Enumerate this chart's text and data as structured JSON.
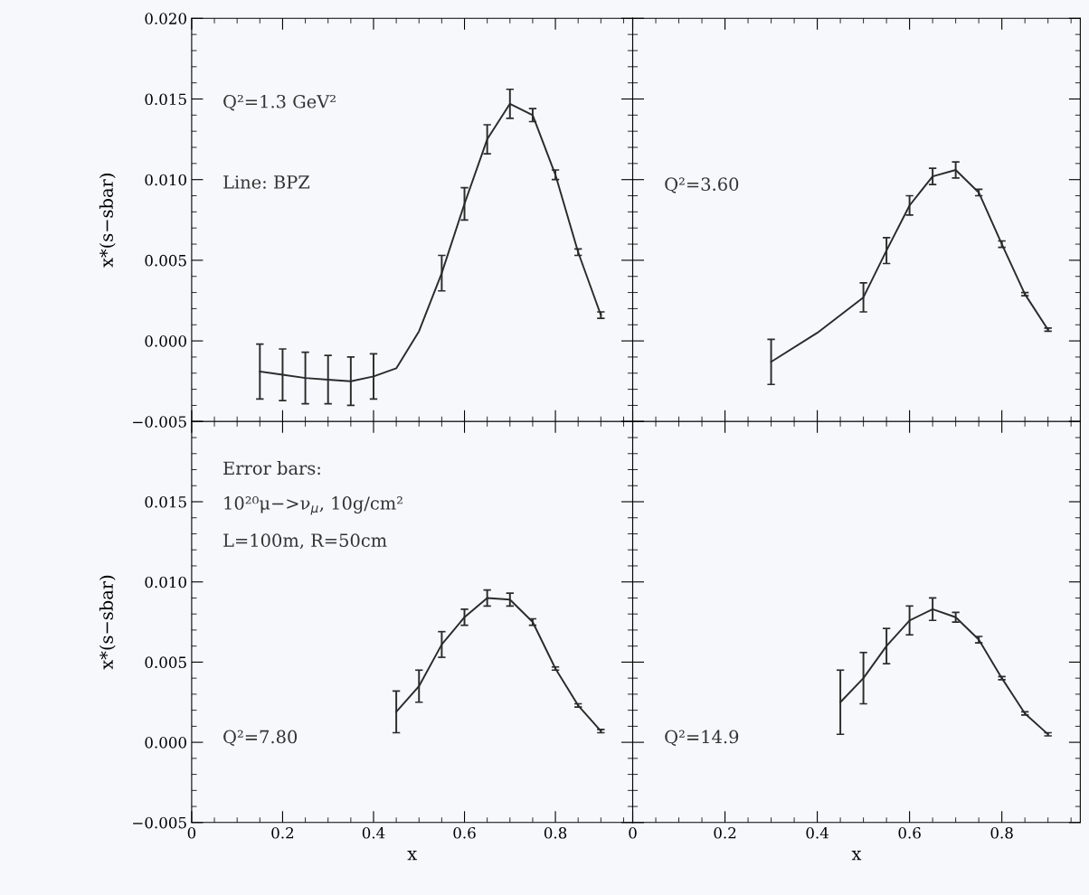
{
  "chart_data": [
    {
      "type": "line",
      "ylabel": "x*(s−sbar)",
      "tick_labels": "y",
      "xlim": [
        0,
        0.97
      ],
      "ylim": [
        -0.005,
        0.02
      ],
      "xticks": [
        0,
        0.2,
        0.4,
        0.6,
        0.8
      ],
      "yticks": [
        {
          "value": -0.005,
          "label": "−0.005"
        },
        {
          "value": 0,
          "label": "0.000"
        },
        {
          "value": 0.005,
          "label": "0.005"
        },
        {
          "value": 0.01,
          "label": "0.010"
        },
        {
          "value": 0.015,
          "label": "0.015"
        },
        {
          "value": 0.02,
          "label": "0.020"
        }
      ],
      "annotations": [
        "Q²=1.3 GeV²",
        "Line: BPZ"
      ],
      "marker": "none",
      "series": [
        {
          "color": "#2b2b2b",
          "x": [
            0.15,
            0.2,
            0.25,
            0.3,
            0.35,
            0.4,
            0.45,
            0.5,
            0.55,
            0.6,
            0.65,
            0.7,
            0.75,
            0.8,
            0.85,
            0.9
          ],
          "values": [
            -0.0019,
            -0.0021,
            -0.0023,
            -0.0024,
            -0.0025,
            -0.0022,
            -0.0017,
            0.0006,
            0.0042,
            0.0085,
            0.0125,
            0.0147,
            0.014,
            0.0103,
            0.0055,
            0.0016
          ],
          "errors": [
            0.0017,
            0.0016,
            0.0016,
            0.0015,
            0.0015,
            0.0014,
            null,
            null,
            0.0011,
            0.001,
            0.0009,
            0.0009,
            0.0004,
            0.0003,
            0.0002,
            0.0002
          ]
        }
      ]
    },
    {
      "type": "line",
      "tick_labels": false,
      "xlim": [
        0,
        0.97
      ],
      "ylim": [
        -0.005,
        0.02
      ],
      "xticks": [
        0,
        0.2,
        0.4,
        0.6,
        0.8
      ],
      "yticks": [
        -0.005,
        0,
        0.005,
        0.01,
        0.015,
        0.02
      ],
      "annotations": [
        "Q²=3.60"
      ],
      "marker": "none",
      "series": [
        {
          "color": "#2b2b2b",
          "x": [
            0.3,
            0.4,
            0.5,
            0.55,
            0.6,
            0.65,
            0.7,
            0.75,
            0.8,
            0.85,
            0.9
          ],
          "values": [
            -0.0013,
            0.0005,
            0.0027,
            0.0056,
            0.0084,
            0.0102,
            0.0106,
            0.0092,
            0.006,
            0.0029,
            0.0007
          ],
          "errors": [
            0.0014,
            null,
            0.0009,
            0.0008,
            0.0006,
            0.0005,
            0.0005,
            0.0002,
            0.0002,
            0.0001,
            0.0001
          ]
        }
      ]
    },
    {
      "type": "line",
      "xlabel": "x",
      "ylabel": "x*(s−sbar)",
      "xlim": [
        0,
        0.97
      ],
      "ylim": [
        -0.005,
        0.02
      ],
      "xticks": [
        0,
        0.2,
        0.4,
        0.6,
        0.8
      ],
      "yticks": [
        {
          "value": -0.005,
          "label": "−0.005"
        },
        {
          "value": 0,
          "label": "0.000"
        },
        {
          "value": 0.005,
          "label": "0.005"
        },
        {
          "value": 0.01,
          "label": "0.010"
        },
        {
          "value": 0.015,
          "label": "0.015"
        },
        {
          "value": 0.02,
          "label": null
        }
      ],
      "annotations": [
        "Error bars:",
        "10²⁰μ−>ν$_{μ}$, 10g/cm²",
        "L=100m, R=50cm",
        "Q²=7.80"
      ],
      "marker": "none",
      "series": [
        {
          "color": "#2b2b2b",
          "x": [
            0.45,
            0.5,
            0.55,
            0.6,
            0.65,
            0.7,
            0.75,
            0.8,
            0.85,
            0.9
          ],
          "values": [
            0.0019,
            0.0035,
            0.0061,
            0.0078,
            0.009,
            0.0089,
            0.0075,
            0.0046,
            0.0023,
            0.0007
          ],
          "errors": [
            0.0013,
            0.001,
            0.0008,
            0.0005,
            0.0005,
            0.0004,
            0.0002,
            0.0001,
            0.0001,
            0.0001
          ]
        }
      ]
    },
    {
      "type": "line",
      "xlabel": "x",
      "tick_labels": "x",
      "xlim": [
        0,
        0.97
      ],
      "ylim": [
        -0.005,
        0.02
      ],
      "xticks": [
        0,
        0.2,
        0.4,
        0.6,
        0.8
      ],
      "yticks": [
        -0.005,
        0,
        0.005,
        0.01,
        0.015,
        0.02
      ],
      "annotations": [
        "Q²=14.9"
      ],
      "marker": "none",
      "series": [
        {
          "color": "#2b2b2b",
          "x": [
            0.45,
            0.5,
            0.55,
            0.6,
            0.65,
            0.7,
            0.75,
            0.8,
            0.85,
            0.9
          ],
          "values": [
            0.0025,
            0.004,
            0.006,
            0.0076,
            0.0083,
            0.0078,
            0.0064,
            0.004,
            0.0018,
            0.0005
          ],
          "errors": [
            0.002,
            0.0016,
            0.0011,
            0.0009,
            0.0007,
            0.0003,
            0.0002,
            0.0001,
            0.0001,
            0.0001
          ]
        }
      ]
    }
  ]
}
